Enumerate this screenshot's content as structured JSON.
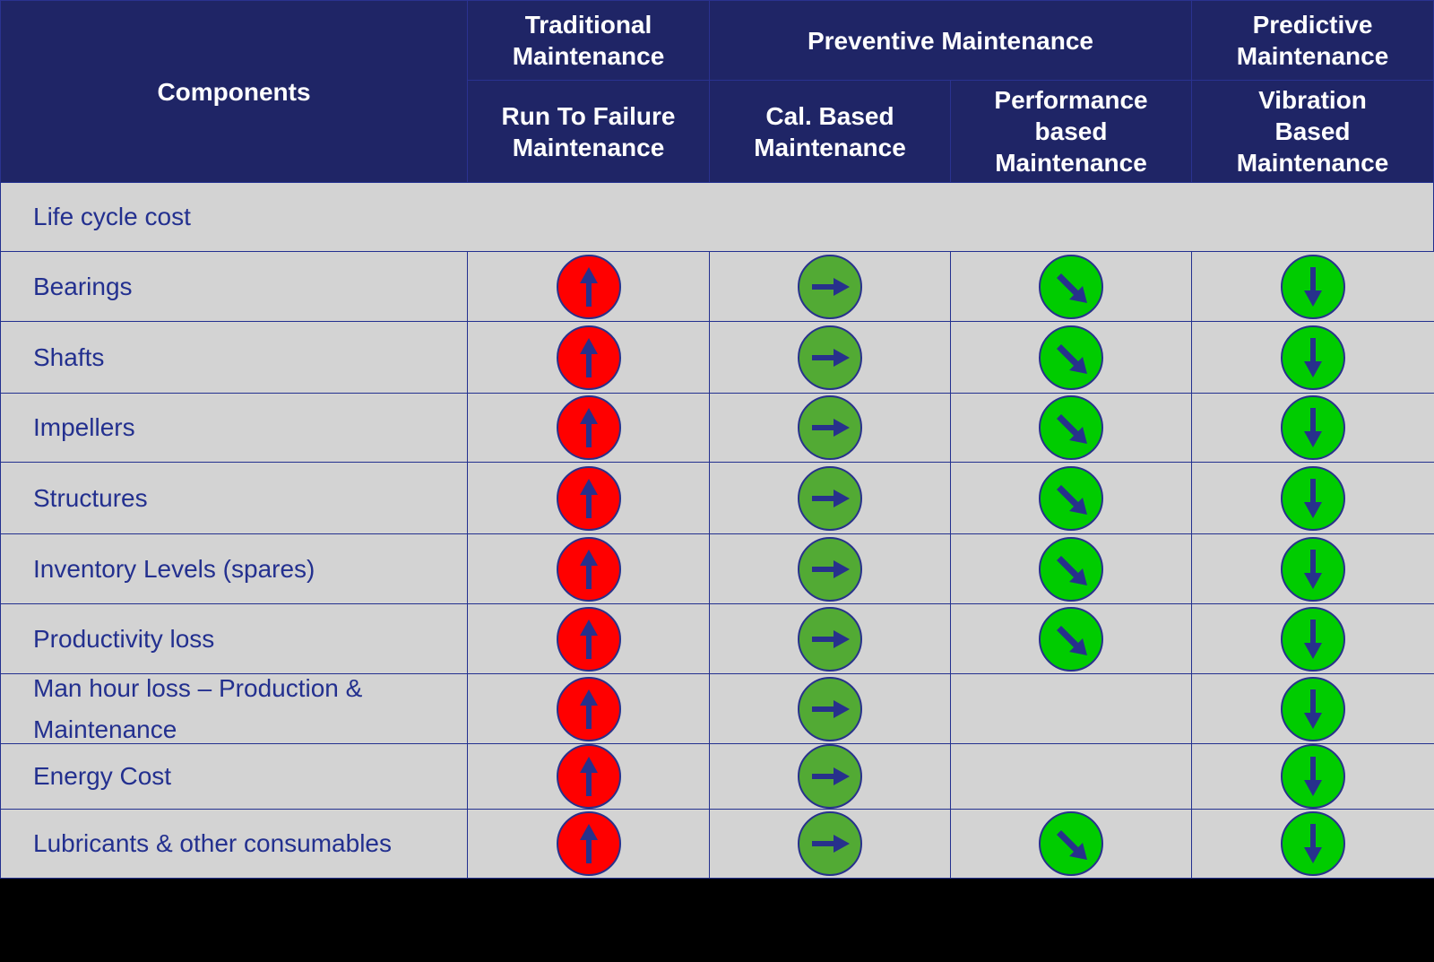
{
  "header": {
    "components": "Components",
    "groups": [
      {
        "label": "Traditional\nMaintenance"
      },
      {
        "label": "Preventive Maintenance"
      },
      {
        "label": "Predictive\nMaintenance"
      }
    ],
    "subcolumns": [
      {
        "label": "Run To Failure\nMaintenance"
      },
      {
        "label": "Cal. Based\nMaintenance"
      },
      {
        "label": "Performance\nbased\nMaintenance"
      },
      {
        "label": "Vibration\nBased\nMaintenance"
      }
    ]
  },
  "section_row": {
    "label": "Life cycle cost"
  },
  "rows": [
    {
      "label": "Bearings",
      "icons": [
        "arrow-up",
        "arrow-right",
        "arrow-down-right",
        "arrow-down"
      ]
    },
    {
      "label": "Shafts",
      "icons": [
        "arrow-up",
        "arrow-right",
        "arrow-down-right",
        "arrow-down"
      ]
    },
    {
      "label": "Impellers",
      "icons": [
        "arrow-up",
        "arrow-right",
        "arrow-down-right",
        "arrow-down"
      ]
    },
    {
      "label": "Structures",
      "icons": [
        "arrow-up",
        "arrow-right",
        "arrow-down-right",
        "arrow-down"
      ]
    },
    {
      "label": "Inventory  Levels (spares)",
      "icons": [
        "arrow-up",
        "arrow-right",
        "arrow-down-right",
        "arrow-down"
      ]
    },
    {
      "label": "Productivity loss",
      "icons": [
        "arrow-up",
        "arrow-right",
        "arrow-down-right",
        "arrow-down"
      ]
    },
    {
      "label": "Man hour loss – Production & Maintenance",
      "icons": [
        "arrow-up",
        "arrow-right",
        "",
        "arrow-down"
      ]
    },
    {
      "label": "Energy Cost",
      "icons": [
        "arrow-up",
        "arrow-right",
        "",
        "arrow-down"
      ]
    },
    {
      "label": "Lubricants & other consumables",
      "icons": [
        "arrow-up",
        "arrow-right",
        "arrow-down-right",
        "arrow-down"
      ]
    }
  ],
  "icon_styles": {
    "arrow-up": {
      "fill": "#FF0000",
      "meaning": "increase"
    },
    "arrow-right": {
      "fill": "#52AA34",
      "meaning": "no change"
    },
    "arrow-down-right": {
      "fill": "#00CC00",
      "meaning": "slight decrease"
    },
    "arrow-down": {
      "fill": "#00CC00",
      "meaning": "decrease"
    }
  },
  "colors": {
    "header_bg": "#1F2566",
    "header_text": "#FFFFFF",
    "body_bg": "#D3D3D3",
    "body_text": "#23308F",
    "grid": "#23308F",
    "arrow": "#27318C"
  }
}
